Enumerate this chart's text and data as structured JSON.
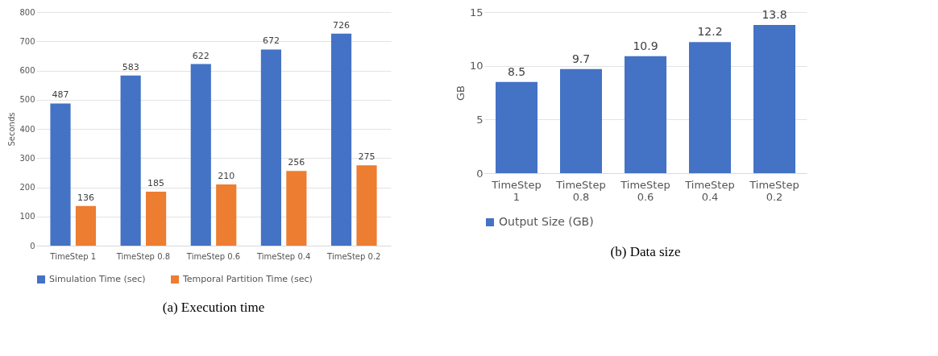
{
  "chart_data": [
    {
      "type": "bar",
      "title": "(a) Execution time",
      "ylabel": "Seconds",
      "categories": [
        "TimeStep 1",
        "TimeStep 0.8",
        "TimeStep 0.6",
        "TimeStep 0.4",
        "TimeStep 0.2"
      ],
      "series": [
        {
          "name": "Simulation Time (sec)",
          "color": "#4472c4",
          "values": [
            487,
            583,
            622,
            672,
            726
          ]
        },
        {
          "name": "Temporal Partition Time (sec)",
          "color": "#ed7d31",
          "values": [
            136,
            185,
            210,
            256,
            275
          ]
        }
      ],
      "ylim": [
        0,
        800
      ],
      "yticks": [
        0,
        100,
        200,
        300,
        400,
        500,
        600,
        700,
        800
      ],
      "grid": "y",
      "legend": "bottom",
      "data_labels": true
    },
    {
      "type": "bar",
      "title": "(b) Data size",
      "ylabel": "GB",
      "categories": [
        "TimeStep 1",
        "TimeStep 0.8",
        "TimeStep 0.6",
        "TimeStep 0.4",
        "TimeStep 0.2"
      ],
      "series": [
        {
          "name": "Output Size (GB)",
          "color": "#4472c4",
          "values": [
            8.5,
            9.7,
            10.9,
            12.2,
            13.8
          ]
        }
      ],
      "ylim": [
        0,
        15
      ],
      "yticks": [
        0,
        5,
        10,
        15
      ],
      "grid": "y",
      "legend": "bottom",
      "data_labels": true
    }
  ]
}
